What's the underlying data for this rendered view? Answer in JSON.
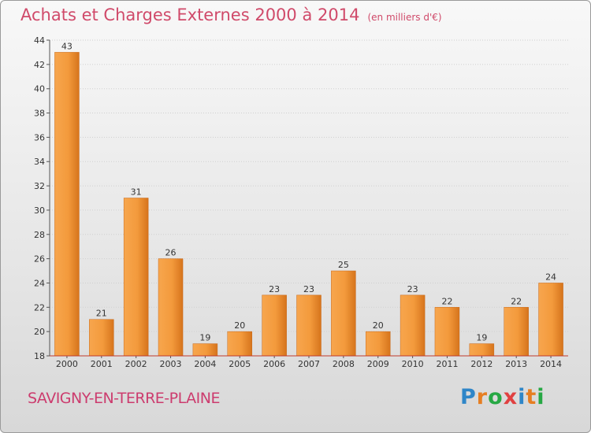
{
  "header": {
    "title": "Achats et Charges Externes 2000 à 2014",
    "subtitle": "(en milliers d'€)"
  },
  "footer": {
    "place": "SAVIGNY-EN-TERRE-PLAINE",
    "logo_text": "Proxiti"
  },
  "colors": {
    "bar_light": "#f7a64e",
    "bar_dark": "#d6741c",
    "title": "#d04a6a",
    "axis": "#c0392b"
  },
  "chart_data": {
    "type": "bar",
    "title": "Achats et Charges Externes 2000 à 2014",
    "subtitle": "(en milliers d'€)",
    "categories": [
      "2000",
      "2001",
      "2002",
      "2003",
      "2004",
      "2005",
      "2006",
      "2007",
      "2008",
      "2009",
      "2010",
      "2011",
      "2012",
      "2013",
      "2014"
    ],
    "values": [
      43,
      21,
      31,
      26,
      19,
      20,
      23,
      23,
      25,
      20,
      23,
      22,
      19,
      22,
      24
    ],
    "ylim": [
      18,
      44
    ],
    "yticks": [
      18,
      20,
      22,
      24,
      26,
      28,
      30,
      32,
      34,
      36,
      38,
      40,
      42,
      44
    ],
    "grid": true
  }
}
